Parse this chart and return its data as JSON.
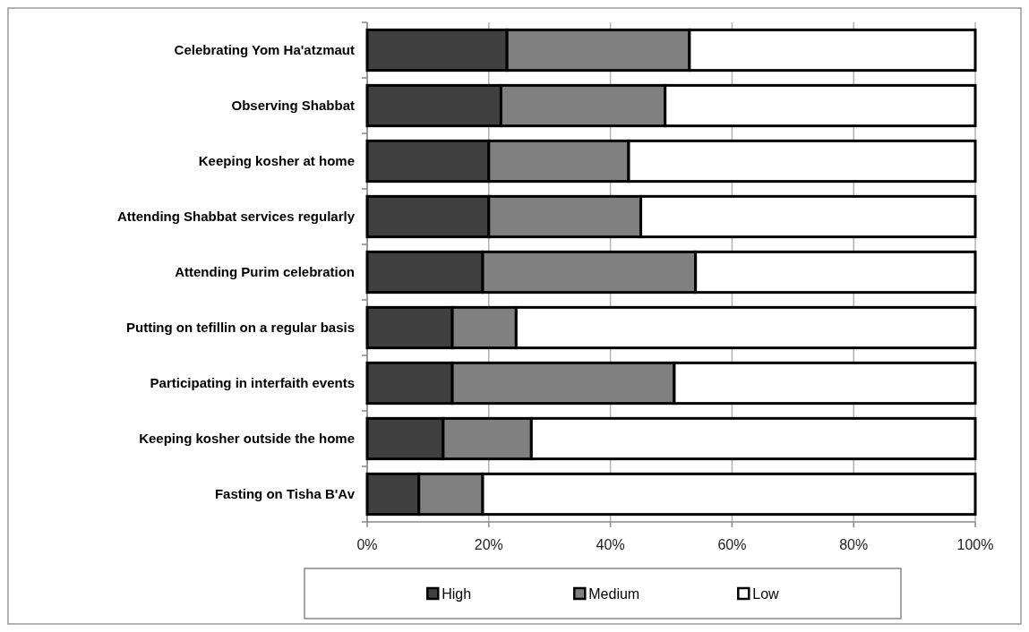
{
  "chart_data": {
    "type": "bar",
    "orientation": "horizontal",
    "stacked": true,
    "categories": [
      "Celebrating Yom Ha'atzmaut",
      "Observing Shabbat",
      "Keeping kosher at home",
      "Attending Shabbat services regularly",
      "Attending Purim celebration",
      "Putting on tefillin on a regular basis",
      "Participating in interfaith events",
      "Keeping kosher outside the home",
      "Fasting on Tisha B'Av"
    ],
    "series": [
      {
        "name": "High",
        "color": "#404040",
        "values": [
          23,
          22,
          20,
          20,
          19,
          14,
          14,
          12.5,
          8.5
        ]
      },
      {
        "name": "Medium",
        "color": "#808080",
        "values": [
          30,
          27,
          23,
          25,
          35,
          10.5,
          36.5,
          14.5,
          10.5
        ]
      },
      {
        "name": "Low",
        "color": "#ffffff",
        "values": [
          47,
          51,
          57,
          55,
          46,
          75.5,
          49.5,
          73,
          81
        ]
      }
    ],
    "xlim": [
      0,
      100
    ],
    "xticks": [
      {
        "value": 0,
        "label": "0%"
      },
      {
        "value": 20,
        "label": "20%"
      },
      {
        "value": 40,
        "label": "40%"
      },
      {
        "value": 60,
        "label": "60%"
      },
      {
        "value": 80,
        "label": "80%"
      },
      {
        "value": 100,
        "label": "100%"
      }
    ],
    "grid": "x",
    "legend": "bottom"
  }
}
